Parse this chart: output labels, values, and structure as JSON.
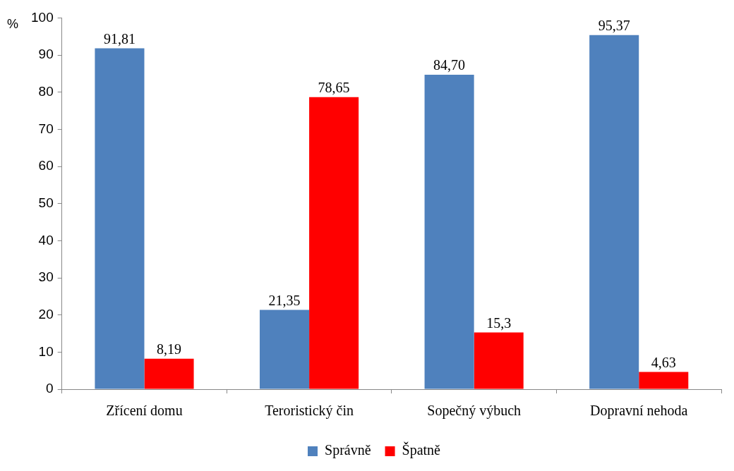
{
  "chart_data": {
    "type": "bar",
    "ylabel": "%",
    "categories": [
      "Zřícení domu",
      "Teroristický čin",
      "Sopečný výbuch",
      "Dopravní nehoda"
    ],
    "series": [
      {
        "name": "Správně",
        "color": "#4f81bd",
        "values": [
          91.81,
          21.35,
          84.7,
          95.37
        ],
        "value_labels": [
          "91,81",
          "21,35",
          "84,70",
          "95,37"
        ]
      },
      {
        "name": "Špatně",
        "color": "#ff0000",
        "values": [
          8.19,
          78.65,
          15.3,
          4.63
        ],
        "value_labels": [
          "8,19",
          "78,65",
          "15,3",
          "4,63"
        ]
      }
    ],
    "ylim": [
      0,
      100
    ],
    "yticks": [
      0,
      10,
      20,
      30,
      40,
      50,
      60,
      70,
      80,
      90,
      100
    ],
    "grid": false,
    "legend": "bottom"
  }
}
